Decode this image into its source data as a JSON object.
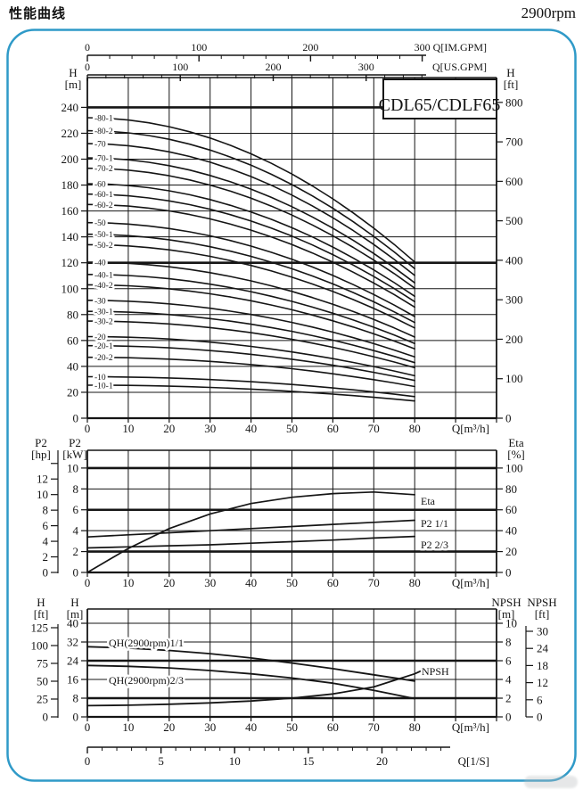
{
  "header": {
    "title": "性能曲线",
    "rpm": "2900rpm"
  },
  "model_label": "CDL65/CDLF65",
  "colors": {
    "frame": "#2f9ac8",
    "ink": "#151515"
  },
  "chart_data": [
    {
      "id": "head-flow",
      "type": "line",
      "title": "CDL65/CDLF65",
      "x_axis": {
        "unit": "Q[m³/h]",
        "tick_labels": [
          0,
          10,
          20,
          30,
          40,
          50,
          60,
          70,
          80
        ],
        "range": [
          0,
          100
        ]
      },
      "y_left": {
        "title": "H",
        "unit": "[m]",
        "tick_labels": [
          0,
          20,
          40,
          60,
          80,
          100,
          120,
          140,
          160,
          180,
          200,
          220,
          240
        ],
        "range": [
          0,
          263
        ],
        "thick_rows": [
          240,
          120
        ]
      },
      "y_right": {
        "title": "H",
        "unit": "[ft]",
        "tick_labels": [
          0,
          100,
          200,
          300,
          400,
          500,
          600,
          700,
          800
        ],
        "m_per_ft": 0.3048
      },
      "gpm_axes": [
        {
          "unit": "Q[IM.GPM]",
          "major_ticks": [
            0,
            100,
            200,
            300
          ],
          "minor_step": 20,
          "m3h_per_unit": 0.27276
        },
        {
          "unit": "Q[US.GPM]",
          "major_ticks": [
            0,
            100,
            200,
            300
          ],
          "minor_step": 20,
          "m3h_per_unit": 0.22712
        }
      ],
      "curve_model": "H(q) = h0 * (1 - 0.48*(q/80)^2), q = 0..80 m3/h",
      "curves": [
        {
          "label": "-80-1",
          "h0": 232,
          "h_at_80": 120.6
        },
        {
          "label": "-80-2",
          "h0": 222,
          "h_at_80": 115.4
        },
        {
          "label": "-70",
          "h0": 212,
          "h_at_80": 110.2
        },
        {
          "label": "-70-1",
          "h0": 201,
          "h_at_80": 104.5
        },
        {
          "label": "-70-2",
          "h0": 193,
          "h_at_80": 100.4
        },
        {
          "label": "-60",
          "h0": 181,
          "h_at_80": 94.1
        },
        {
          "label": "-60-1",
          "h0": 173,
          "h_at_80": 90.0
        },
        {
          "label": "-60-2",
          "h0": 165,
          "h_at_80": 85.8
        },
        {
          "label": "-50",
          "h0": 151,
          "h_at_80": 78.5
        },
        {
          "label": "-50-1",
          "h0": 142,
          "h_at_80": 73.8
        },
        {
          "label": "-50-2",
          "h0": 134,
          "h_at_80": 69.7
        },
        {
          "label": "-40",
          "h0": 120.5,
          "h_at_80": 62.7
        },
        {
          "label": "-40-1",
          "h0": 111,
          "h_at_80": 57.7
        },
        {
          "label": "-40-2",
          "h0": 103,
          "h_at_80": 53.6
        },
        {
          "label": "-30",
          "h0": 91,
          "h_at_80": 47.3
        },
        {
          "label": "-30-1",
          "h0": 82.5,
          "h_at_80": 42.9
        },
        {
          "label": "-30-2",
          "h0": 75,
          "h_at_80": 39.0
        },
        {
          "label": "-20",
          "h0": 63,
          "h_at_80": 32.8
        },
        {
          "label": "-20-1",
          "h0": 56,
          "h_at_80": 29.1
        },
        {
          "label": "-20-2",
          "h0": 47,
          "h_at_80": 24.4
        },
        {
          "label": "-10",
          "h0": 32,
          "h_at_80": 16.6
        },
        {
          "label": "-10-1",
          "h0": 25.5,
          "h_at_80": 13.3
        }
      ]
    },
    {
      "id": "power-efficiency",
      "type": "line",
      "x_axis": {
        "unit": "Q[m³/h]",
        "tick_labels": [
          0,
          10,
          20,
          30,
          40,
          50,
          60,
          70,
          80
        ],
        "range": [
          0,
          100
        ]
      },
      "y_hp": {
        "title": "P2",
        "unit": "[hp]",
        "tick_labels": [
          0,
          2,
          4,
          6,
          8,
          10,
          12
        ],
        "kw_per_hp": 0.7457
      },
      "y_kw": {
        "title": "P2",
        "unit": "[kW]",
        "tick_labels": [
          0,
          2,
          4,
          6,
          8,
          10
        ],
        "range": [
          0,
          11.7
        ],
        "thick_rows": [
          10,
          6,
          2
        ]
      },
      "y_eta": {
        "title": "Eta",
        "unit": "[%]",
        "tick_labels": [
          0,
          20,
          40,
          60,
          80,
          100
        ]
      },
      "q": [
        0,
        10,
        20,
        30,
        40,
        50,
        60,
        70,
        80
      ],
      "series": [
        {
          "label": "Eta",
          "axis": "eta",
          "values": [
            0,
            23,
            42,
            56,
            66,
            72,
            75.5,
            77,
            74.5
          ]
        },
        {
          "label": "P2 1/1",
          "axis": "kw",
          "values": [
            3.4,
            3.6,
            3.8,
            4.0,
            4.2,
            4.4,
            4.6,
            4.8,
            5.0
          ]
        },
        {
          "label": "P2 2/3",
          "axis": "kw",
          "values": [
            2.35,
            2.45,
            2.55,
            2.65,
            2.8,
            2.95,
            3.1,
            3.3,
            3.45
          ]
        }
      ]
    },
    {
      "id": "stage-head-npsh",
      "type": "line",
      "x_axis": {
        "unit": "Q[m³/h]",
        "tick_labels": [
          0,
          10,
          20,
          30,
          40,
          50,
          60,
          70,
          80
        ],
        "range": [
          0,
          100
        ]
      },
      "x_sub_axis": {
        "unit": "Q[1/S]",
        "major_ticks": [
          0,
          5,
          10,
          15,
          20
        ],
        "minor_step": 1,
        "m3h_per_unit": 3.6
      },
      "y_ft": {
        "title": "H",
        "unit": "[ft]",
        "tick_labels": [
          0,
          25,
          50,
          75,
          100,
          125
        ],
        "m_per_ft": 0.3048
      },
      "y_m": {
        "title": "H",
        "unit": "[m]",
        "tick_labels": [
          0,
          8,
          16,
          24,
          32,
          40
        ],
        "range": [
          0,
          46.1
        ],
        "thick_rows": [
          24,
          8
        ]
      },
      "y_npsh_m": {
        "title": "NPSH",
        "unit": "[m]",
        "tick_labels": [
          0,
          2,
          4,
          6,
          8,
          10
        ],
        "m_scale_factor": 4
      },
      "y_npsh_ft": {
        "title": "NPSH",
        "unit": "[ft]",
        "tick_labels": [
          0,
          6,
          12,
          18,
          24,
          30
        ]
      },
      "q": [
        0,
        10,
        20,
        30,
        40,
        50,
        60,
        70,
        80
      ],
      "series": [
        {
          "label": "QH(2900rpm)1/1",
          "axis": "m",
          "values": [
            30,
            29.4,
            28.4,
            27,
            25.2,
            23,
            20.6,
            18,
            15.3
          ]
        },
        {
          "label": "QH(2900rpm)2/3",
          "axis": "m",
          "values": [
            22,
            21.6,
            20.9,
            19.8,
            18.4,
            16.6,
            14.4,
            11.3,
            7.8
          ]
        },
        {
          "label": "NPSH",
          "axis": "npsh",
          "q": [
            0,
            10,
            20,
            30,
            40,
            50,
            60,
            70,
            80,
            82
          ],
          "values": [
            1.2,
            1.25,
            1.35,
            1.5,
            1.7,
            2.0,
            2.45,
            3.2,
            4.6,
            5.0
          ]
        }
      ]
    }
  ]
}
